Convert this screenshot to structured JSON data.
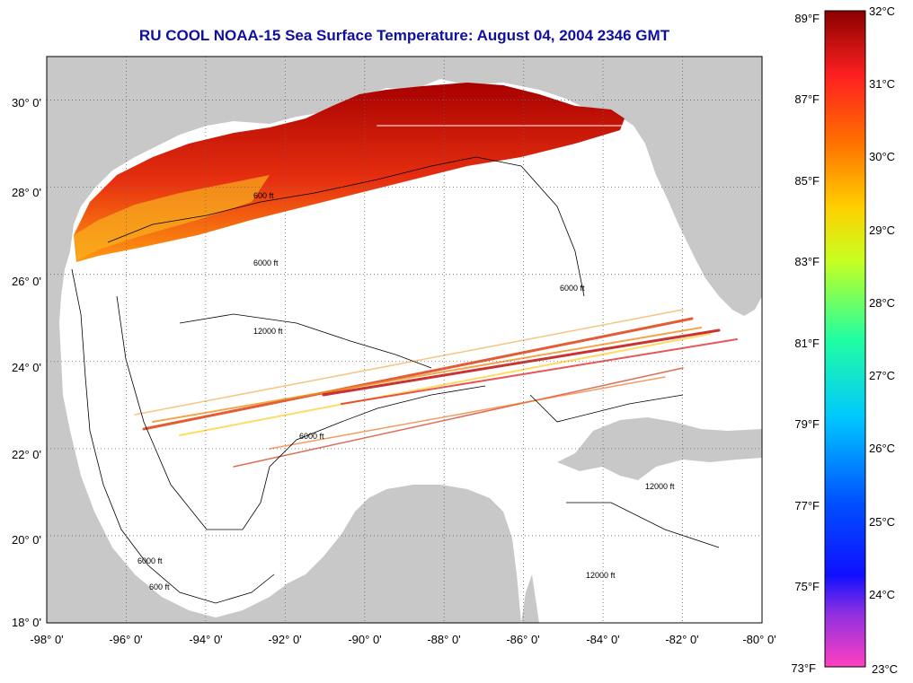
{
  "title": "RU COOL  NOAA-15  Sea Surface Temperature:  August 04, 2004 2346 GMT",
  "map": {
    "x_ticks": [
      "-98° 0'",
      "-96° 0'",
      "-94° 0'",
      "-92° 0'",
      "-90° 0'",
      "-88° 0'",
      "-86° 0'",
      "-84° 0'",
      "-82° 0'",
      "-80° 0'"
    ],
    "y_ticks": [
      "30° 0'",
      "28° 0'",
      "26° 0'",
      "24° 0'",
      "22° 0'",
      "20° 0'",
      "18° 0'"
    ],
    "lon_range": [
      -98,
      -80
    ],
    "lat_range": [
      18,
      31
    ],
    "contour_labels": [
      "600 ft",
      "6000 ft",
      "12000 ft"
    ],
    "colors": {
      "land": "#c8c8c8",
      "water": "#ffffff",
      "frame": "#000000"
    }
  },
  "colorbar": {
    "celsius_labels": [
      "32°C",
      "31°C",
      "30°C",
      "29°C",
      "28°C",
      "27°C",
      "26°C",
      "25°C",
      "24°C",
      "23°C"
    ],
    "fahrenheit_labels": [
      "89°F",
      "87°F",
      "85°F",
      "83°F",
      "81°F",
      "79°F",
      "77°F",
      "75°F",
      "73°F"
    ],
    "range_c": [
      23,
      32
    ]
  }
}
